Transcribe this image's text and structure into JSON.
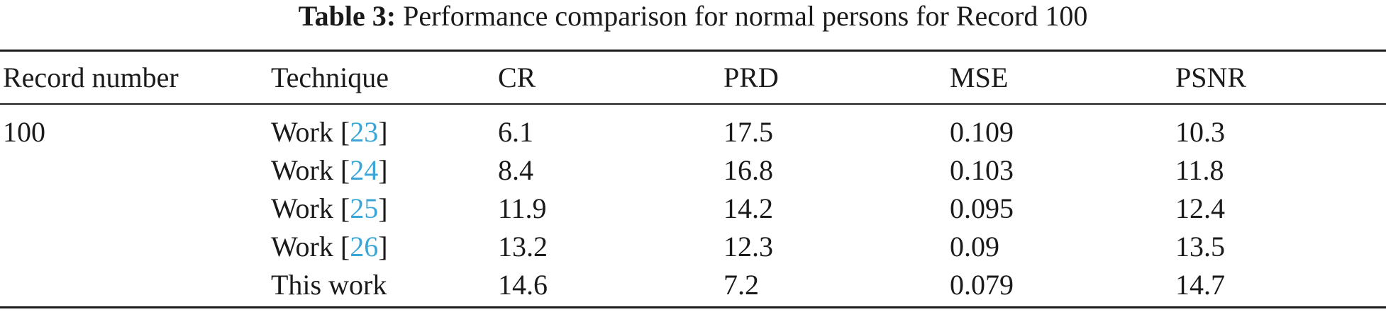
{
  "caption": {
    "label": "Table 3:",
    "text": "Performance comparison for normal persons for Record 100"
  },
  "table": {
    "headers": [
      "Record number",
      "Technique",
      "CR",
      "PRD",
      "MSE",
      "PSNR"
    ],
    "record": "100",
    "rows": [
      {
        "technique_word": "Work",
        "cite": "23",
        "cr": "6.1",
        "prd": "17.5",
        "mse": "0.109",
        "psnr": "10.3"
      },
      {
        "technique_word": "Work",
        "cite": "24",
        "cr": "8.4",
        "prd": "16.8",
        "mse": "0.103",
        "psnr": "11.8"
      },
      {
        "technique_word": "Work",
        "cite": "25",
        "cr": "11.9",
        "prd": "14.2",
        "mse": "0.095",
        "psnr": "12.4"
      },
      {
        "technique_word": "Work",
        "cite": "26",
        "cr": "13.2",
        "prd": "12.3",
        "mse": "0.09",
        "psnr": "13.5"
      },
      {
        "technique_word": "This work",
        "cite": "",
        "cr": "14.6",
        "prd": "7.2",
        "mse": "0.079",
        "psnr": "14.7"
      }
    ]
  },
  "colors": {
    "citation_link": "#3aa6d8",
    "text": "#1a1a1a"
  }
}
